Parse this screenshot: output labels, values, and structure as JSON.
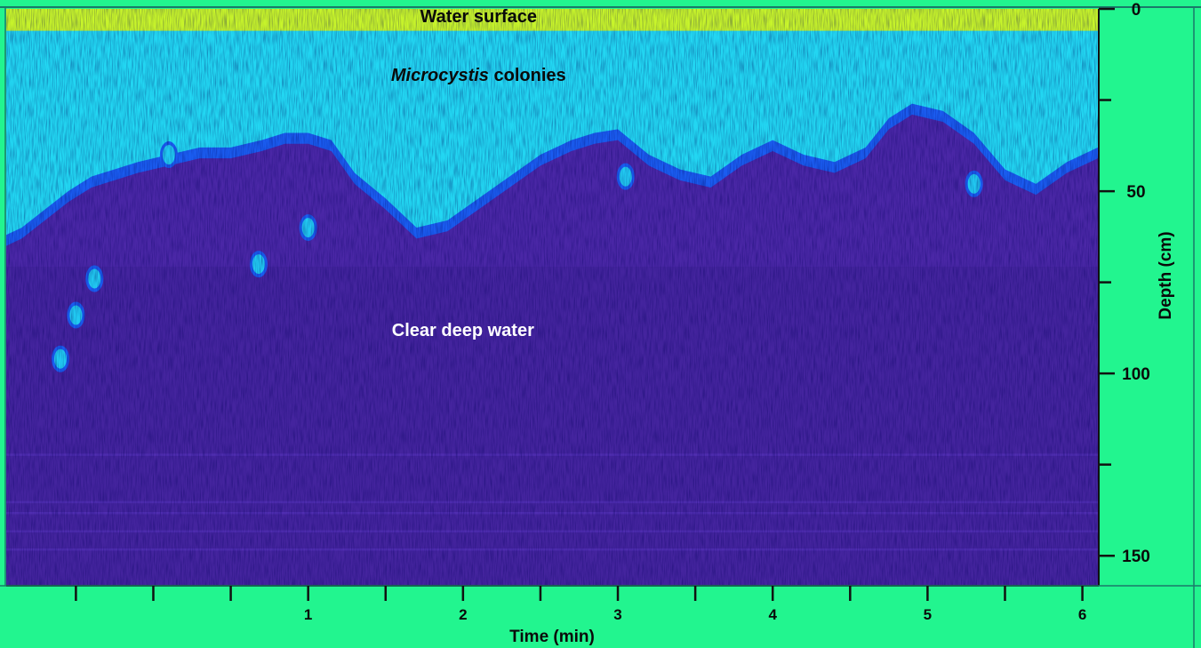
{
  "chart_data": {
    "type": "heatmap",
    "title": "",
    "xlabel": "Time (min)",
    "ylabel": "Depth (cm)",
    "xlim": [
      -0.95,
      6.1
    ],
    "ylim": [
      0,
      158
    ],
    "y_inverted": true,
    "x_ticks": [
      1,
      2,
      3,
      4,
      5,
      6
    ],
    "x_tick_labels": [
      "1",
      "2",
      "3",
      "4",
      "5",
      "6"
    ],
    "y_ticks": [
      0,
      50,
      100,
      150
    ],
    "y_tick_labels": [
      "0",
      "50",
      "100",
      "150"
    ],
    "grid": false,
    "colors": {
      "panel": "#22f58f",
      "surface": "#c8f52a",
      "colonies": "#22d6f2",
      "colony_edge": "#1a5cf0",
      "deep_water": "#4a27a6",
      "label_dark": "#0a0a0a",
      "label_light": "#ffffff"
    },
    "annotations": [
      {
        "text": "Water surface",
        "x": 2.1,
        "y": 2,
        "color": "label_dark"
      },
      {
        "text_italic": "Microcystis",
        "text": " colonies",
        "x": 2.1,
        "y": 18,
        "color": "label_dark"
      },
      {
        "text": "Clear deep water",
        "x": 2.0,
        "y": 88,
        "color": "label_light"
      }
    ],
    "colony_boundary": {
      "x": [
        -0.95,
        -0.85,
        -0.7,
        -0.55,
        -0.4,
        -0.25,
        -0.1,
        0.1,
        0.3,
        0.5,
        0.7,
        0.85,
        1.0,
        1.15,
        1.3,
        1.5,
        1.7,
        1.9,
        2.1,
        2.3,
        2.5,
        2.7,
        2.85,
        3.0,
        3.2,
        3.4,
        3.6,
        3.8,
        4.0,
        4.2,
        4.4,
        4.6,
        4.75,
        4.9,
        5.1,
        5.3,
        5.5,
        5.7,
        5.9,
        6.1
      ],
      "depth": [
        62,
        60,
        55,
        50,
        46,
        44,
        42,
        40,
        38,
        38,
        36,
        34,
        34,
        36,
        45,
        52,
        60,
        58,
        52,
        46,
        40,
        36,
        34,
        33,
        40,
        44,
        46,
        40,
        36,
        40,
        42,
        38,
        30,
        26,
        28,
        34,
        44,
        48,
        42,
        38
      ]
    },
    "surface_layer_depth": 6,
    "sinking_colonies": [
      {
        "x": -0.38,
        "depth": 74
      },
      {
        "x": -0.5,
        "depth": 84
      },
      {
        "x": -0.6,
        "depth": 96
      },
      {
        "x": 0.68,
        "depth": 70
      },
      {
        "x": 1.0,
        "depth": 60
      },
      {
        "x": 0.1,
        "depth": 40
      },
      {
        "x": 3.05,
        "depth": 46
      },
      {
        "x": 5.3,
        "depth": 48
      }
    ]
  }
}
